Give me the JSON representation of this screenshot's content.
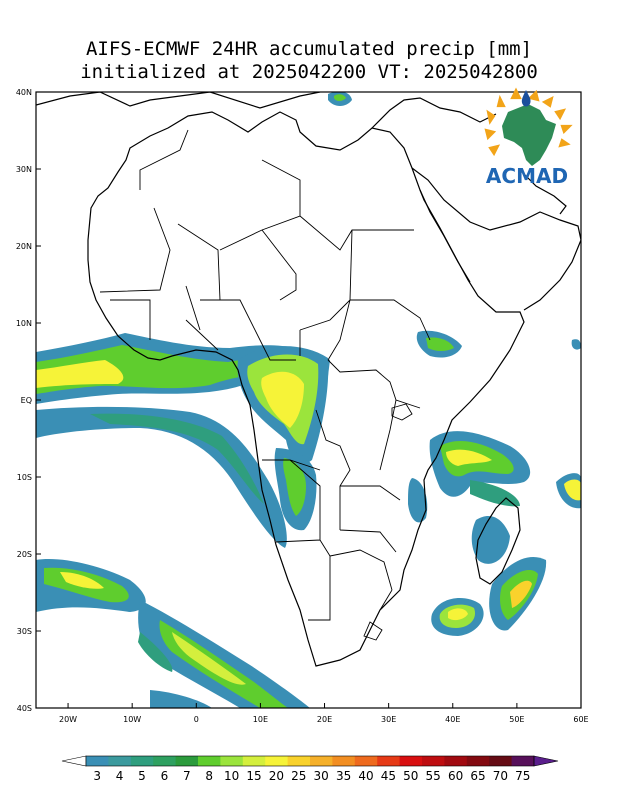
{
  "header": {
    "line1": "AIFS-ECMWF 24HR accumulated precip [mm]",
    "line2": "initialized at 2025042200 VT: 2025042800"
  },
  "logo": {
    "text": "ACMAD"
  },
  "map": {
    "lon_range": [
      -25,
      60
    ],
    "lat_range": [
      -40,
      40
    ],
    "lat_labels": [
      {
        "lat": 40,
        "text": "40N"
      },
      {
        "lat": 30,
        "text": "30N"
      },
      {
        "lat": 20,
        "text": "20N"
      },
      {
        "lat": 10,
        "text": "10N"
      },
      {
        "lat": 0,
        "text": "EQ"
      },
      {
        "lat": -10,
        "text": "10S"
      },
      {
        "lat": -20,
        "text": "20S"
      },
      {
        "lat": -30,
        "text": "30S"
      },
      {
        "lat": -40,
        "text": "40S"
      }
    ],
    "lon_labels": [
      {
        "lon": -20,
        "text": "20W"
      },
      {
        "lon": -10,
        "text": "10W"
      },
      {
        "lon": 0,
        "text": "0"
      },
      {
        "lon": 10,
        "text": "10E"
      },
      {
        "lon": 20,
        "text": "20E"
      },
      {
        "lon": 30,
        "text": "30E"
      },
      {
        "lon": 40,
        "text": "40E"
      },
      {
        "lon": 50,
        "text": "50E"
      },
      {
        "lon": 60,
        "text": "60E"
      }
    ]
  },
  "legend": {
    "labels": [
      "3",
      "4",
      "5",
      "6",
      "7",
      "8",
      "10",
      "15",
      "20",
      "25",
      "30",
      "35",
      "40",
      "45",
      "50",
      "55",
      "60",
      "65",
      "70",
      "75"
    ],
    "colors": [
      "#3a8fb5",
      "#3b9a9e",
      "#2f9e7e",
      "#2ea060",
      "#2b9b3c",
      "#5fcd2e",
      "#9be43c",
      "#d4ef3d",
      "#f6f338",
      "#f9d22c",
      "#f5b02a",
      "#f28e22",
      "#ee6a1e",
      "#e63a16",
      "#d80f10",
      "#be0d10",
      "#a10a10",
      "#830a10",
      "#650c14",
      "#57105a"
    ],
    "low_end": "#ffffff",
    "high_end": "#5a1e8c"
  }
}
